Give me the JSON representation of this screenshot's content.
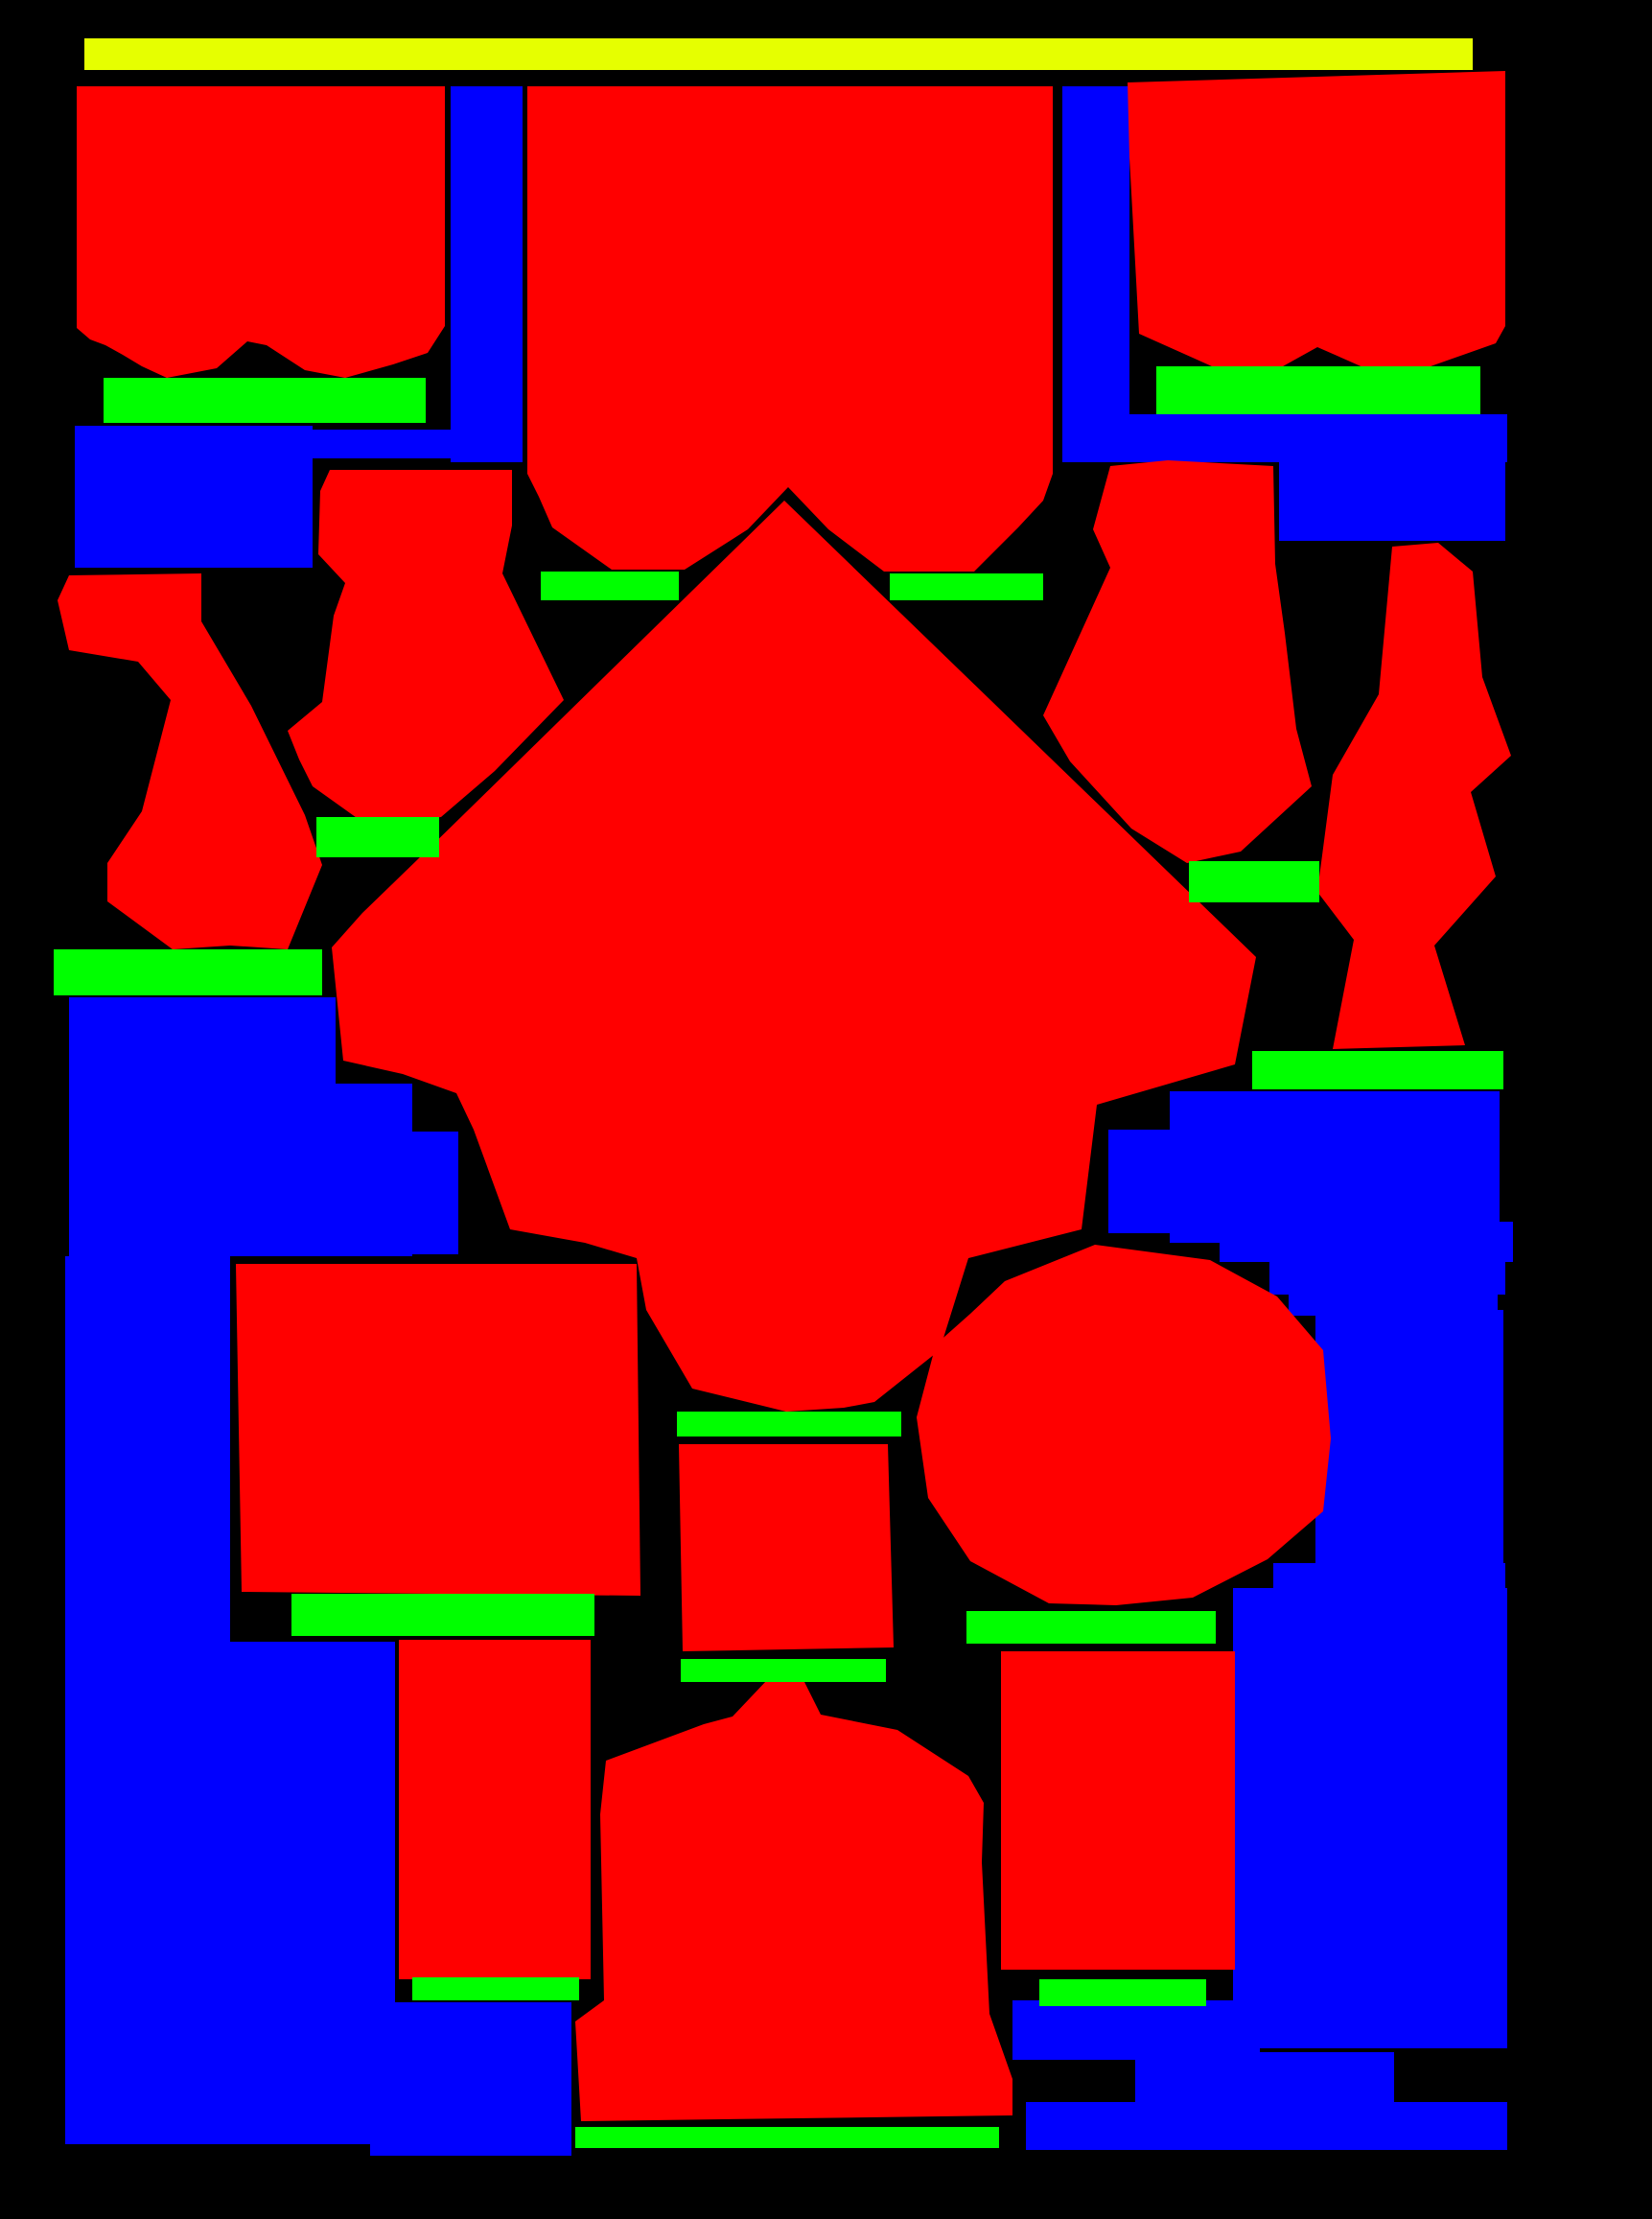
{
  "page": {
    "background": "#000000"
  },
  "colors": {
    "title_bar": "#E6FF00",
    "figure": "#FF0000",
    "caption": "#00FF00",
    "text_block": "#0000FF"
  }
}
